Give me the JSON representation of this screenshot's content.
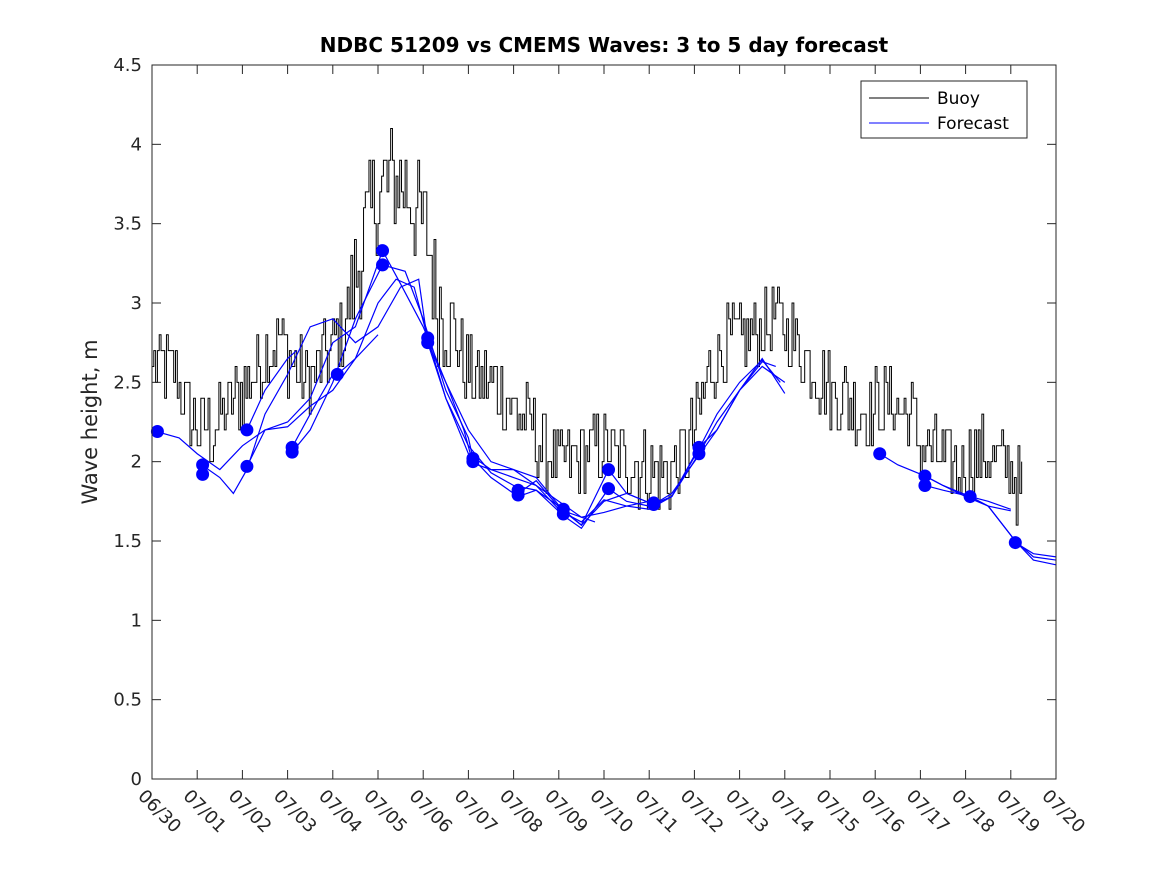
{
  "chart_data": {
    "type": "line",
    "title": "NDBC 51209 vs CMEMS Waves: 3 to 5 day forecast",
    "xlabel": "",
    "ylabel": "Wave height, m",
    "xlim": [
      "06/30",
      "07/20"
    ],
    "ylim": [
      0,
      4.5
    ],
    "y_ticks": [
      0,
      0.5,
      1,
      1.5,
      2,
      2.5,
      3,
      3.5,
      4,
      4.5
    ],
    "y_tick_labels": [
      "0",
      "0.5",
      "1",
      "1.5",
      "2",
      "2.5",
      "3",
      "3.5",
      "4",
      "4.5"
    ],
    "x_tick_labels": [
      "06/30",
      "07/01",
      "07/02",
      "07/03",
      "07/04",
      "07/05",
      "07/06",
      "07/07",
      "07/08",
      "07/09",
      "07/10",
      "07/11",
      "07/12",
      "07/13",
      "07/14",
      "07/15",
      "07/16",
      "07/17",
      "07/18",
      "07/19",
      "07/20"
    ],
    "x_unit": "days since 06/30 00:00",
    "grid": false,
    "legend": {
      "position": "top-right",
      "entries": [
        {
          "label": "Buoy",
          "color": "#000000"
        },
        {
          "label": "Forecast",
          "color": "#0000ff"
        }
      ]
    },
    "buoy": {
      "name": "Buoy",
      "color": "#000000",
      "anchors": [
        [
          0.0,
          2.6
        ],
        [
          0.3,
          2.6
        ],
        [
          0.6,
          2.5
        ],
        [
          0.8,
          2.3
        ],
        [
          1.0,
          2.2
        ],
        [
          1.3,
          2.2
        ],
        [
          1.6,
          2.3
        ],
        [
          1.9,
          2.4
        ],
        [
          2.2,
          2.55
        ],
        [
          2.5,
          2.7
        ],
        [
          2.8,
          2.8
        ],
        [
          3.1,
          2.6
        ],
        [
          3.4,
          2.5
        ],
        [
          3.7,
          2.6
        ],
        [
          4.0,
          2.75
        ],
        [
          4.3,
          2.9
        ],
        [
          4.6,
          3.3
        ],
        [
          4.9,
          3.65
        ],
        [
          5.2,
          3.75
        ],
        [
          5.5,
          3.8
        ],
        [
          5.8,
          3.6
        ],
        [
          6.1,
          3.4
        ],
        [
          6.3,
          3.0
        ],
        [
          6.6,
          2.9
        ],
        [
          6.9,
          2.6
        ],
        [
          7.2,
          2.5
        ],
        [
          7.5,
          2.5
        ],
        [
          7.8,
          2.4
        ],
        [
          8.1,
          2.3
        ],
        [
          8.4,
          2.2
        ],
        [
          8.7,
          2.05
        ],
        [
          9.0,
          2.0
        ],
        [
          9.3,
          2.0
        ],
        [
          9.6,
          2.05
        ],
        [
          9.9,
          2.1
        ],
        [
          10.2,
          2.05
        ],
        [
          10.5,
          2.0
        ],
        [
          10.8,
          1.95
        ],
        [
          11.1,
          1.95
        ],
        [
          11.4,
          1.9
        ],
        [
          11.7,
          2.0
        ],
        [
          12.0,
          2.2
        ],
        [
          12.3,
          2.55
        ],
        [
          12.6,
          2.7
        ],
        [
          12.9,
          2.75
        ],
        [
          13.2,
          2.8
        ],
        [
          13.5,
          2.85
        ],
        [
          13.8,
          2.9
        ],
        [
          14.1,
          2.8
        ],
        [
          14.4,
          2.7
        ],
        [
          14.7,
          2.55
        ],
        [
          15.0,
          2.45
        ],
        [
          15.3,
          2.4
        ],
        [
          15.6,
          2.35
        ],
        [
          15.9,
          2.3
        ],
        [
          16.2,
          2.4
        ],
        [
          16.5,
          2.35
        ],
        [
          16.8,
          2.3
        ],
        [
          17.0,
          2.1
        ],
        [
          17.3,
          2.05
        ],
        [
          17.6,
          1.95
        ],
        [
          17.9,
          1.95
        ],
        [
          18.2,
          2.05
        ],
        [
          18.5,
          2.05
        ],
        [
          18.8,
          2.0
        ],
        [
          19.0,
          1.95
        ],
        [
          19.25,
          1.8
        ]
      ]
    },
    "forecast_lines": [
      {
        "name": "Forecast",
        "color": "#0000ff",
        "points": [
          [
            0.1,
            2.19
          ],
          [
            0.6,
            2.15
          ],
          [
            1.0,
            2.05
          ],
          [
            1.5,
            1.95
          ],
          [
            2.0,
            2.1
          ],
          [
            2.5,
            2.2
          ],
          [
            3.0,
            2.22
          ],
          [
            3.5,
            2.35
          ],
          [
            4.0,
            2.45
          ],
          [
            4.5,
            2.65
          ],
          [
            5.0,
            3.0
          ],
          [
            5.4,
            3.15
          ],
          [
            5.8,
            3.1
          ],
          [
            6.1,
            2.78
          ],
          [
            6.5,
            2.4
          ],
          [
            7.0,
            2.05
          ],
          [
            7.5,
            1.95
          ],
          [
            8.0,
            1.9
          ],
          [
            8.5,
            1.85
          ],
          [
            9.0,
            1.7
          ],
          [
            9.5,
            1.65
          ],
          [
            9.8,
            1.62
          ]
        ]
      },
      {
        "name": "Forecast",
        "color": "#0000ff",
        "points": [
          [
            1.1,
            1.98
          ],
          [
            1.5,
            1.9
          ],
          [
            1.8,
            1.8
          ],
          [
            2.1,
            1.95
          ],
          [
            2.5,
            2.3
          ],
          [
            3.0,
            2.55
          ],
          [
            3.5,
            2.85
          ],
          [
            4.0,
            2.9
          ],
          [
            4.5,
            2.75
          ],
          [
            5.0,
            2.85
          ],
          [
            5.5,
            3.1
          ],
          [
            5.9,
            3.15
          ],
          [
            6.1,
            2.75
          ],
          [
            6.5,
            2.5
          ],
          [
            7.0,
            2.2
          ],
          [
            7.5,
            2.0
          ],
          [
            8.0,
            1.95
          ],
          [
            8.5,
            1.85
          ],
          [
            9.0,
            1.75
          ],
          [
            9.5,
            1.65
          ],
          [
            10.0,
            1.68
          ],
          [
            10.5,
            1.72
          ],
          [
            11.0,
            1.75
          ]
        ]
      },
      {
        "name": "Forecast",
        "color": "#0000ff",
        "points": [
          [
            2.1,
            2.2
          ],
          [
            2.5,
            2.45
          ],
          [
            3.0,
            2.65
          ],
          [
            3.2,
            2.7
          ]
        ]
      },
      {
        "name": "Forecast",
        "color": "#0000ff",
        "points": [
          [
            2.1,
            1.97
          ],
          [
            2.5,
            2.2
          ],
          [
            3.0,
            2.25
          ],
          [
            3.5,
            2.4
          ],
          [
            4.0,
            2.75
          ],
          [
            4.5,
            2.85
          ],
          [
            5.1,
            3.33
          ],
          [
            5.5,
            3.12
          ],
          [
            6.0,
            2.85
          ],
          [
            6.5,
            2.5
          ],
          [
            6.9,
            2.2
          ],
          [
            7.1,
            1.99
          ],
          [
            7.5,
            1.95
          ],
          [
            8.0,
            1.95
          ],
          [
            8.5,
            1.9
          ],
          [
            9.1,
            1.69
          ],
          [
            9.5,
            1.6
          ],
          [
            10.0,
            1.75
          ],
          [
            10.5,
            1.8
          ],
          [
            11.1,
            1.73
          ],
          [
            11.5,
            1.8
          ],
          [
            12.0,
            2.0
          ],
          [
            12.5,
            2.2
          ],
          [
            13.0,
            2.45
          ],
          [
            13.5,
            2.6
          ],
          [
            14.0,
            2.5
          ]
        ]
      },
      {
        "name": "Forecast",
        "color": "#0000ff",
        "points": [
          [
            3.1,
            2.06
          ],
          [
            3.5,
            2.2
          ],
          [
            4.0,
            2.5
          ],
          [
            4.5,
            2.9
          ],
          [
            5.1,
            3.24
          ],
          [
            5.6,
            3.2
          ],
          [
            6.0,
            2.9
          ],
          [
            6.5,
            2.45
          ],
          [
            7.0,
            2.15
          ],
          [
            7.1,
            2.02
          ],
          [
            7.5,
            1.9
          ],
          [
            8.0,
            1.8
          ],
          [
            8.1,
            1.78
          ],
          [
            8.5,
            1.82
          ],
          [
            9.1,
            1.66
          ],
          [
            9.5,
            1.58
          ],
          [
            10.1,
            1.83
          ],
          [
            10.5,
            1.75
          ],
          [
            11.0,
            1.72
          ],
          [
            11.5,
            1.78
          ],
          [
            12.1,
            2.09
          ],
          [
            12.5,
            2.2
          ],
          [
            13.0,
            2.45
          ],
          [
            13.5,
            2.65
          ],
          [
            14.0,
            2.43
          ]
        ]
      },
      {
        "name": "Forecast",
        "color": "#0000ff",
        "points": [
          [
            3.1,
            2.09
          ],
          [
            3.5,
            2.3
          ],
          [
            4.0,
            2.55
          ],
          [
            4.1,
            2.55
          ],
          [
            4.5,
            2.65
          ],
          [
            5.0,
            2.8
          ]
        ]
      },
      {
        "name": "Forecast",
        "color": "#0000ff",
        "points": [
          [
            6.1,
            2.75
          ],
          [
            6.5,
            2.4
          ],
          [
            7.0,
            2.1
          ],
          [
            7.5,
            1.93
          ],
          [
            8.0,
            1.85
          ],
          [
            8.5,
            1.82
          ],
          [
            9.0,
            1.72
          ],
          [
            9.5,
            1.6
          ],
          [
            10.1,
            1.95
          ],
          [
            10.5,
            1.8
          ],
          [
            11.1,
            1.73
          ],
          [
            11.5,
            1.78
          ],
          [
            12.1,
            2.05
          ],
          [
            12.5,
            2.25
          ],
          [
            13.0,
            2.45
          ],
          [
            13.5,
            2.63
          ],
          [
            13.8,
            2.6
          ]
        ]
      },
      {
        "name": "Forecast",
        "color": "#0000ff",
        "points": [
          [
            8.1,
            1.8
          ],
          [
            8.5,
            1.88
          ],
          [
            9.1,
            1.68
          ],
          [
            9.5,
            1.62
          ],
          [
            10.0,
            1.76
          ],
          [
            10.5,
            1.72
          ],
          [
            11.0,
            1.7
          ],
          [
            11.5,
            1.78
          ],
          [
            12.1,
            2.08
          ],
          [
            12.5,
            2.3
          ],
          [
            13.0,
            2.5
          ],
          [
            13.5,
            2.64
          ],
          [
            13.9,
            2.5
          ]
        ]
      },
      {
        "name": "Forecast",
        "color": "#0000ff",
        "points": [
          [
            16.1,
            2.05
          ],
          [
            16.5,
            1.98
          ],
          [
            17.1,
            1.91
          ],
          [
            17.5,
            1.85
          ],
          [
            18.1,
            1.78
          ],
          [
            18.5,
            1.75
          ],
          [
            19.0,
            1.7
          ]
        ]
      },
      {
        "name": "Forecast",
        "color": "#0000ff",
        "points": [
          [
            17.1,
            1.85
          ],
          [
            17.5,
            1.82
          ],
          [
            18.1,
            1.78
          ],
          [
            18.5,
            1.72
          ],
          [
            19.1,
            1.5
          ],
          [
            19.5,
            1.38
          ],
          [
            20.0,
            1.35
          ]
        ]
      },
      {
        "name": "Forecast",
        "color": "#0000ff",
        "points": [
          [
            17.1,
            1.91
          ],
          [
            17.5,
            1.85
          ],
          [
            18.0,
            1.78
          ],
          [
            18.5,
            1.72
          ],
          [
            19.0,
            1.69
          ]
        ]
      },
      {
        "name": "Forecast",
        "color": "#0000ff",
        "points": [
          [
            18.1,
            1.78
          ],
          [
            18.5,
            1.72
          ],
          [
            19.1,
            1.5
          ],
          [
            19.5,
            1.4
          ],
          [
            20.0,
            1.38
          ]
        ]
      },
      {
        "name": "Forecast",
        "color": "#0000ff",
        "points": [
          [
            19.1,
            1.49
          ],
          [
            19.5,
            1.42
          ],
          [
            20.0,
            1.4
          ]
        ]
      }
    ],
    "forecast_markers": {
      "color": "#0000ff",
      "points": [
        [
          0.12,
          2.19
        ],
        [
          1.12,
          1.98
        ],
        [
          1.12,
          1.92
        ],
        [
          2.1,
          2.2
        ],
        [
          2.1,
          1.97
        ],
        [
          3.1,
          2.09
        ],
        [
          3.1,
          2.06
        ],
        [
          4.1,
          2.55
        ],
        [
          5.1,
          3.33
        ],
        [
          5.1,
          3.24
        ],
        [
          6.1,
          2.78
        ],
        [
          6.1,
          2.75
        ],
        [
          7.1,
          2.02
        ],
        [
          7.1,
          2.0
        ],
        [
          8.1,
          1.82
        ],
        [
          8.1,
          1.79
        ],
        [
          9.1,
          1.7
        ],
        [
          9.1,
          1.67
        ],
        [
          10.1,
          1.95
        ],
        [
          10.1,
          1.83
        ],
        [
          11.1,
          1.74
        ],
        [
          11.1,
          1.73
        ],
        [
          12.1,
          2.09
        ],
        [
          12.1,
          2.05
        ],
        [
          16.1,
          2.05
        ],
        [
          17.1,
          1.91
        ],
        [
          17.1,
          1.85
        ],
        [
          18.1,
          1.78
        ],
        [
          19.1,
          1.49
        ]
      ]
    }
  }
}
